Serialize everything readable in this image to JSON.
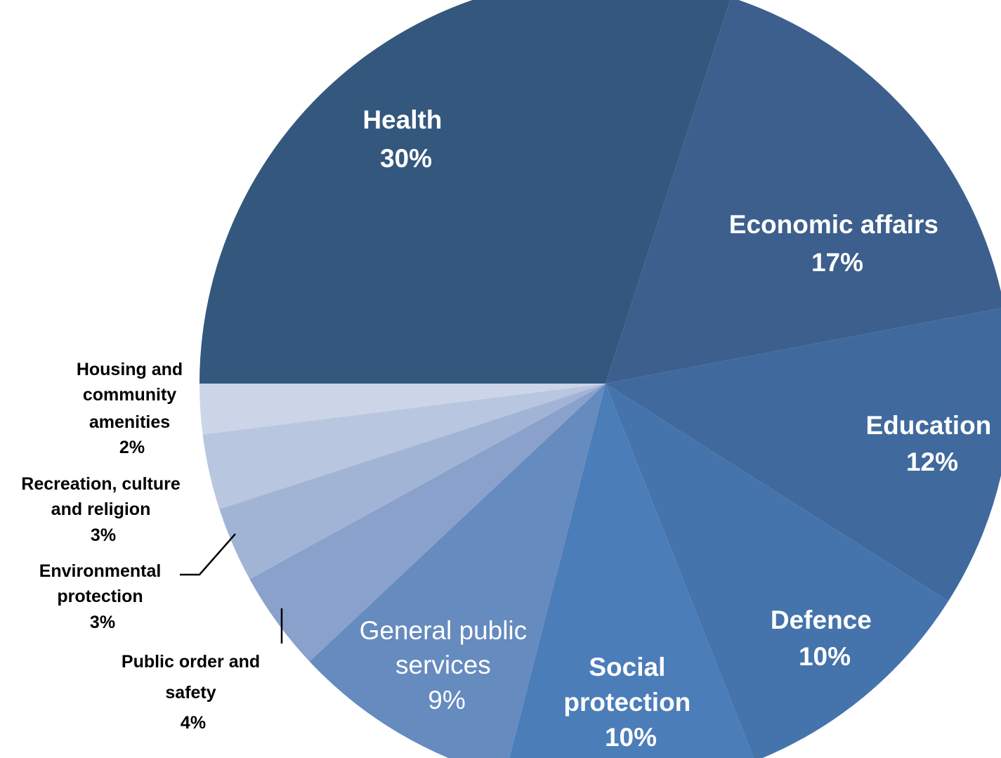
{
  "chart_data": {
    "type": "pie",
    "title": "",
    "slices": [
      {
        "label": "Health",
        "value": 30,
        "value_label": "30%",
        "color": "#34577E",
        "text_color": "#FFFFFF"
      },
      {
        "label": "Economic affairs",
        "value": 17,
        "value_label": "17%",
        "color": "#3C5F8D",
        "text_color": "#FFFFFF"
      },
      {
        "label": "Education",
        "value": 12,
        "value_label": "12%",
        "color": "#406A9D",
        "text_color": "#FFFFFF"
      },
      {
        "label": "Defence",
        "value": 10,
        "value_label": "10%",
        "color": "#4573AB",
        "text_color": "#FFFFFF"
      },
      {
        "label": "Social protection",
        "value": 10,
        "value_label": "10%",
        "color": "#4B7DB9",
        "text_color": "#FFFFFF"
      },
      {
        "label": "General public services",
        "value": 9,
        "value_label": "9%",
        "color": "#658BBF",
        "text_color": "#FFFFFF"
      },
      {
        "label": "Public order and safety",
        "value": 4,
        "value_label": "4%",
        "color": "#89A1CB",
        "text_color": "#000000"
      },
      {
        "label": "Environmental protection",
        "value": 3,
        "value_label": "3%",
        "color": "#A2B4D6",
        "text_color": "#000000"
      },
      {
        "label": "Recreation, culture and religion",
        "value": 3,
        "value_label": "3%",
        "color": "#B9C6DF",
        "text_color": "#000000"
      },
      {
        "label": "Housing and community amenities",
        "value": 2,
        "value_label": "2%",
        "color": "#CBD5E7",
        "text_color": "#000000"
      }
    ]
  }
}
